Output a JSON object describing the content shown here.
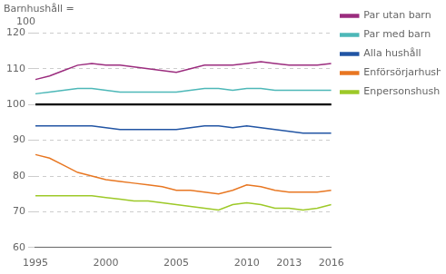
{
  "chart_data": {
    "type": "line",
    "ylabel": [
      "Barnhushåll =",
      "    100"
    ],
    "x": [
      1995,
      1996,
      1997,
      1998,
      1999,
      2000,
      2001,
      2002,
      2003,
      2004,
      2005,
      2006,
      2007,
      2008,
      2009,
      2010,
      2011,
      2012,
      2013,
      2014,
      2015,
      2016
    ],
    "series": [
      {
        "name": "Par utan barn",
        "color": "#9b2c7e",
        "values": [
          107,
          108,
          109.5,
          111,
          111.5,
          111,
          111,
          110.5,
          110,
          109.5,
          109,
          110,
          111,
          111,
          111,
          111.5,
          112,
          111.5,
          111,
          111,
          111,
          111.5
        ]
      },
      {
        "name": "Par med barn",
        "color": "#4db8b8",
        "values": [
          103,
          103.5,
          104,
          104.5,
          104.5,
          104,
          103.5,
          103.5,
          103.5,
          103.5,
          103.5,
          104,
          104.5,
          104.5,
          104,
          104.5,
          104.5,
          104,
          104,
          104,
          104,
          104
        ]
      },
      {
        "name": "Alla hushåll",
        "color": "#2255a4",
        "values": [
          94,
          94,
          94,
          94,
          94,
          93.5,
          93,
          93,
          93,
          93,
          93,
          93.5,
          94,
          94,
          93.5,
          94,
          93.5,
          93,
          92.5,
          92,
          92,
          92
        ]
      },
      {
        "name": "Enförsörjarhushåll",
        "color": "#e87722",
        "values": [
          86,
          85,
          83,
          81,
          80,
          79,
          78.5,
          78,
          77.5,
          77,
          76,
          76,
          75.5,
          75,
          76,
          77.5,
          77,
          76,
          75.5,
          75.5,
          75.5,
          76
        ]
      },
      {
        "name": "Enpersonshushåll",
        "color": "#9dc928",
        "values": [
          74.5,
          74.5,
          74.5,
          74.5,
          74.5,
          74,
          73.5,
          73,
          73,
          72.5,
          72,
          71.5,
          71,
          70.5,
          72,
          72.5,
          72,
          71,
          71,
          70.5,
          71,
          72
        ]
      }
    ],
    "reference_line": 100,
    "xlim": [
      1995,
      2016
    ],
    "xticks": [
      1995,
      2000,
      2005,
      2010,
      2013,
      2016
    ],
    "ylim": [
      60,
      120
    ],
    "yticks": [
      60,
      70,
      80,
      90,
      100,
      110,
      120
    ],
    "grid": "y",
    "legend": "right"
  }
}
